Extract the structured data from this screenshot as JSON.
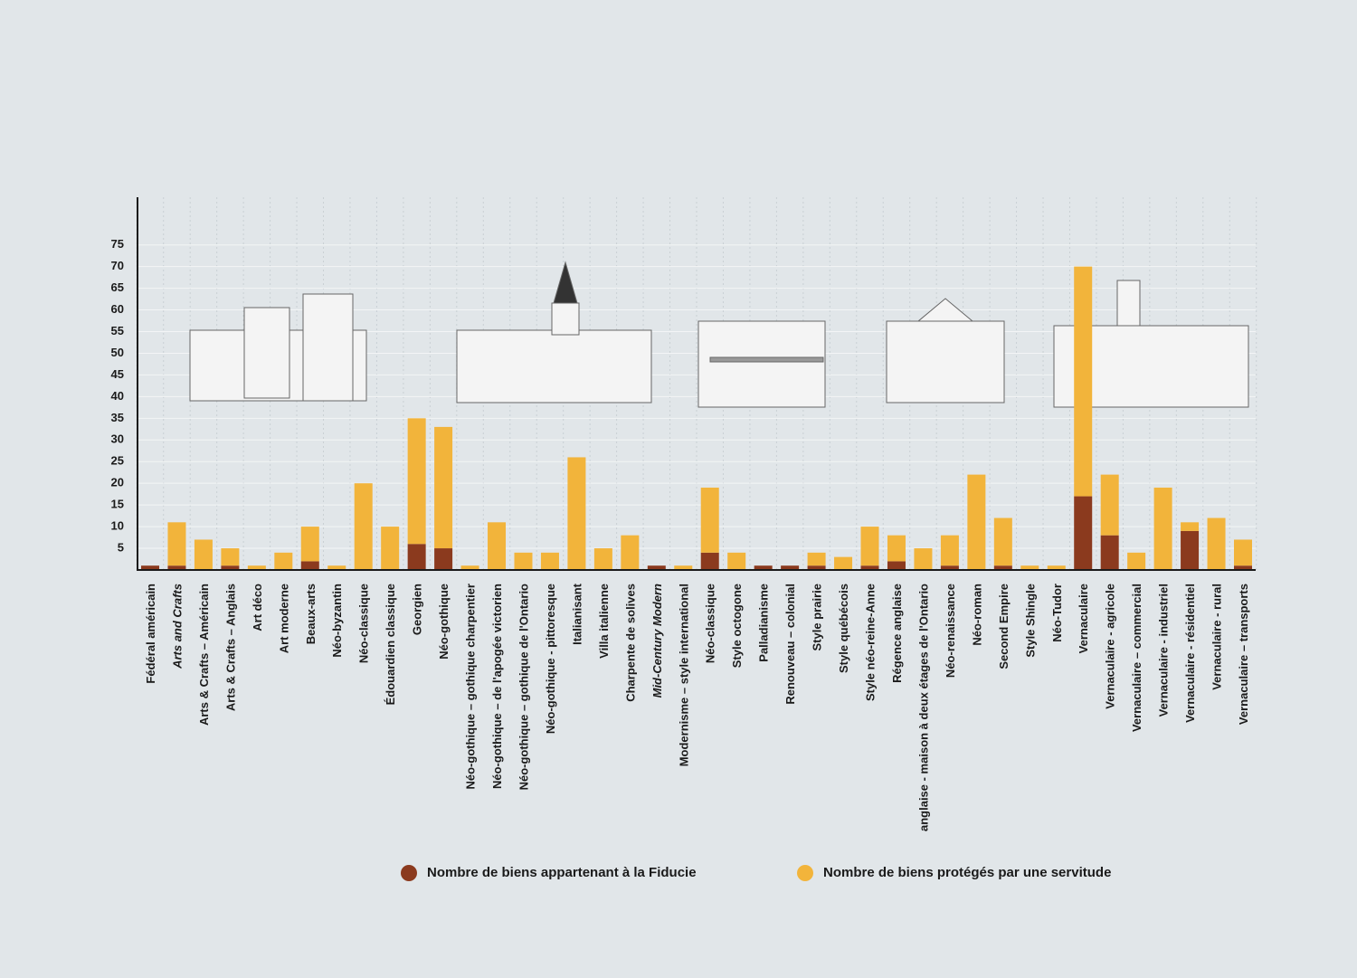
{
  "chart_data": {
    "type": "stacked-bar",
    "categories": [
      "Fédéral américain",
      "Arts and Crafts",
      "Arts & Crafts – Américain",
      "Arts & Crafts – Anglais",
      "Art déco",
      "Art moderne",
      "Beaux-arts",
      "Néo-byzantin",
      "Néo-classique",
      "Édouardien classique",
      "Georgien",
      "Néo-gothique",
      "Néo-gothique – gothique charpentier",
      "Néo-gothique – de l'apogée victorien",
      "Néo-gothique – gothique de l'Ontario",
      "Néo-gothique - pittoresque",
      "Italianisant",
      "Villa italienne",
      "Charpente de solives",
      "Mid-Century Modern",
      "Modernisme – style international",
      "Néo-classique",
      "Style octogone",
      "Palladianisme",
      "Renouveau – colonial",
      "Style prairie",
      "Style québécois",
      "Style néo-reine-Anne",
      "Régence anglaise",
      "anglaise - maison à deux étages de l'Ontario",
      "Néo-renaissance",
      "Néo-roman",
      "Second Empire",
      "Style Shingle",
      "Néo-Tudor",
      "Vernaculaire",
      "Vernaculaire - agricole",
      "Vernaculaire – commercial",
      "Vernaculaire - industriel",
      "Vernaculaire - résidentiel",
      "Vernaculaire - rural",
      "Vernaculaire – transports"
    ],
    "series": [
      {
        "name": "Nombre de biens appartenant à la Fiducie",
        "color": "#8b3a1e",
        "values": [
          1,
          1,
          0,
          1,
          0,
          0,
          2,
          0,
          0,
          0,
          6,
          5,
          0,
          0,
          0,
          0,
          0,
          0,
          0,
          1,
          0,
          4,
          0,
          1,
          1,
          1,
          0,
          1,
          2,
          0,
          1,
          0,
          1,
          0,
          0,
          17,
          8,
          0,
          0,
          9,
          0,
          1
        ]
      },
      {
        "name": "Nombre de biens protégés par une servitude",
        "color": "#f2b43b",
        "values": [
          0,
          10,
          7,
          4,
          1,
          4,
          8,
          1,
          20,
          10,
          29,
          28,
          1,
          11,
          4,
          4,
          26,
          5,
          8,
          0,
          1,
          15,
          4,
          0,
          0,
          3,
          3,
          9,
          6,
          5,
          7,
          22,
          11,
          1,
          1,
          53,
          14,
          4,
          19,
          2,
          12,
          6
        ]
      }
    ],
    "ylim": [
      0,
      86
    ],
    "yticks": [
      5,
      10,
      15,
      20,
      25,
      30,
      35,
      40,
      45,
      50,
      55,
      60,
      65,
      70,
      75
    ],
    "grid": true
  }
}
